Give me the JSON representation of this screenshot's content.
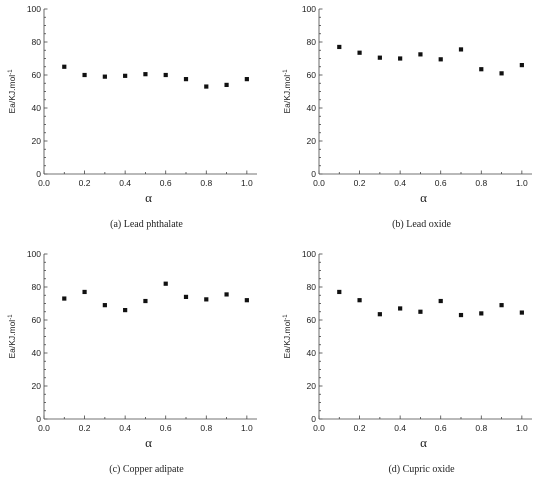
{
  "chart_data": [
    {
      "type": "scatter",
      "caption": "(a) Lead phthalate",
      "xlabel": "α",
      "ylabel": "Ea/KJ.mol",
      "ylabel_sup": "-1",
      "xlim": [
        0.0,
        1.05
      ],
      "ylim": [
        0,
        100
      ],
      "xticks": [
        "0.0",
        "0.2",
        "0.4",
        "0.6",
        "0.8",
        "1.0"
      ],
      "yticks": [
        "0",
        "20",
        "40",
        "60",
        "80",
        "100"
      ],
      "grid": false,
      "legend": "none",
      "x": [
        0.1,
        0.2,
        0.3,
        0.4,
        0.5,
        0.6,
        0.7,
        0.8,
        0.9,
        1.0
      ],
      "y": [
        65,
        60,
        59,
        59.5,
        60.5,
        60,
        57.5,
        53,
        54,
        57.5
      ]
    },
    {
      "type": "scatter",
      "caption": "(b) Lead oxide",
      "xlabel": "α",
      "ylabel": "Ea/KJ.mol",
      "ylabel_sup": "-1",
      "xlim": [
        0.0,
        1.05
      ],
      "ylim": [
        0,
        100
      ],
      "xticks": [
        "0.0",
        "0.2",
        "0.4",
        "0.6",
        "0.8",
        "1.0"
      ],
      "yticks": [
        "0",
        "20",
        "40",
        "60",
        "80",
        "100"
      ],
      "grid": false,
      "legend": "none",
      "x": [
        0.1,
        0.2,
        0.3,
        0.4,
        0.5,
        0.6,
        0.7,
        0.8,
        0.9,
        1.0
      ],
      "y": [
        77,
        73.5,
        70.5,
        70,
        72.5,
        69.5,
        75.5,
        63.5,
        61,
        66
      ]
    },
    {
      "type": "scatter",
      "caption": "(c) Copper adipate",
      "xlabel": "α",
      "ylabel": "Ea/KJ.mol",
      "ylabel_sup": "-1",
      "xlim": [
        0.0,
        1.05
      ],
      "ylim": [
        0,
        100
      ],
      "xticks": [
        "0.0",
        "0.2",
        "0.4",
        "0.6",
        "0.8",
        "1.0"
      ],
      "yticks": [
        "0",
        "20",
        "40",
        "60",
        "80",
        "100"
      ],
      "grid": false,
      "legend": "none",
      "x": [
        0.1,
        0.2,
        0.3,
        0.4,
        0.5,
        0.6,
        0.7,
        0.8,
        0.9,
        1.0
      ],
      "y": [
        73,
        77,
        69,
        66,
        71.5,
        82,
        74,
        72.5,
        75.5,
        72
      ]
    },
    {
      "type": "scatter",
      "caption": "(d) Cupric oxide",
      "xlabel": "α",
      "ylabel": "Ea/KJ.mol",
      "ylabel_sup": "-1",
      "xlim": [
        0.0,
        1.05
      ],
      "ylim": [
        0,
        100
      ],
      "xticks": [
        "0.0",
        "0.2",
        "0.4",
        "0.6",
        "0.8",
        "1.0"
      ],
      "yticks": [
        "0",
        "20",
        "40",
        "60",
        "80",
        "100"
      ],
      "grid": false,
      "legend": "none",
      "x": [
        0.1,
        0.2,
        0.3,
        0.4,
        0.5,
        0.6,
        0.7,
        0.8,
        0.9,
        1.0
      ],
      "y": [
        77,
        72,
        63.5,
        67,
        65,
        71.5,
        63,
        64,
        69,
        64.5
      ]
    }
  ]
}
